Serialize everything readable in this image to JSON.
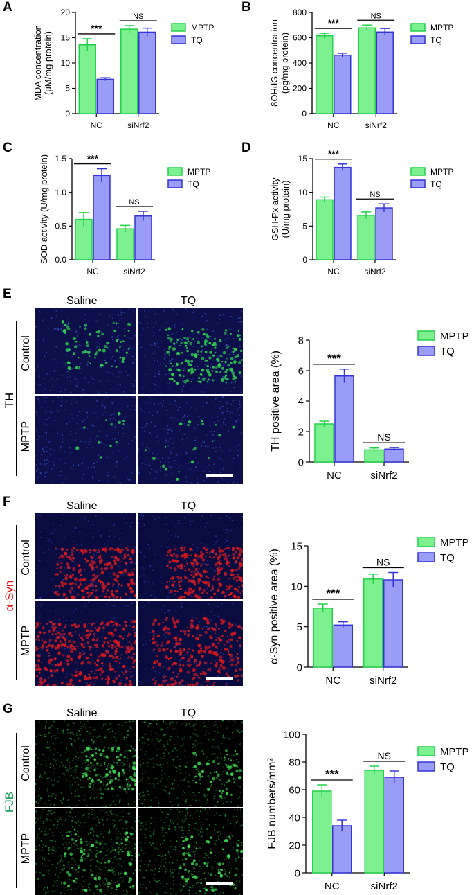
{
  "panels": {
    "A": "A",
    "B": "B",
    "C": "C",
    "D": "D",
    "E": "E",
    "F": "F",
    "G": "G"
  },
  "colors": {
    "mptp_fill": "#7df08f",
    "mptp_edge": "#22d14a",
    "tq_fill": "#9a9cf5",
    "tq_edge": "#3535d6",
    "th_label": "#17a05b",
    "syn_label": "#e8141c",
    "fjb_label": "#17a05b"
  },
  "legend": {
    "mptp": "MPTP",
    "tq": "TQ"
  },
  "micrographs": {
    "E": {
      "columns": [
        "Saline",
        "TQ"
      ],
      "rows": [
        "Control",
        "MPTP"
      ],
      "stain": "TH"
    },
    "F": {
      "columns": [
        "Saline",
        "TQ"
      ],
      "rows": [
        "Control",
        "MPTP"
      ],
      "stain": "α-Syn"
    },
    "G": {
      "columns": [
        "Saline",
        "TQ"
      ],
      "rows": [
        "Control",
        "MPTP"
      ],
      "stain": "FJB"
    }
  },
  "chart_data": [
    {
      "panel": "A",
      "type": "bar",
      "categories": [
        "NC",
        "siNrf2"
      ],
      "ylabel": [
        "MDA concentration",
        "(μM/mg protein)"
      ],
      "ylim": [
        0,
        20
      ],
      "yticks": [
        0,
        5,
        10,
        15,
        20
      ],
      "series": [
        {
          "name": "MPTP",
          "values": [
            13.6,
            16.7
          ],
          "errors": [
            1.2,
            0.7
          ]
        },
        {
          "name": "TQ",
          "values": [
            6.8,
            16.1
          ],
          "errors": [
            0.3,
            0.8
          ]
        }
      ],
      "annotations": [
        "***",
        "NS"
      ]
    },
    {
      "panel": "B",
      "type": "bar",
      "categories": [
        "NC",
        "siNrf2"
      ],
      "ylabel": [
        "8OHdG concentration",
        "(pg/mg protein)"
      ],
      "ylim": [
        0,
        800
      ],
      "yticks": [
        0,
        200,
        400,
        600,
        800
      ],
      "series": [
        {
          "name": "MPTP",
          "values": [
            615,
            678
          ],
          "errors": [
            20,
            22
          ]
        },
        {
          "name": "TQ",
          "values": [
            462,
            645
          ],
          "errors": [
            15,
            28
          ]
        }
      ],
      "annotations": [
        "***",
        "NS"
      ]
    },
    {
      "panel": "C",
      "type": "bar",
      "categories": [
        "NC",
        "siNrf2"
      ],
      "ylabel": [
        "SOD activity (U/mg protein)"
      ],
      "ylim": [
        0,
        1.5
      ],
      "yticks": [
        "0.0",
        "0.5",
        "1.0",
        "1.5"
      ],
      "series": [
        {
          "name": "MPTP",
          "values": [
            0.6,
            0.46
          ],
          "errors": [
            0.1,
            0.05
          ]
        },
        {
          "name": "TQ",
          "values": [
            1.25,
            0.65
          ],
          "errors": [
            0.1,
            0.07
          ]
        }
      ],
      "annotations": [
        "***",
        "NS"
      ]
    },
    {
      "panel": "D",
      "type": "bar",
      "categories": [
        "NC",
        "siNrf2"
      ],
      "ylabel": [
        "GSH-Px activity",
        "(U/mg protein)"
      ],
      "ylim": [
        0,
        15
      ],
      "yticks": [
        0,
        5,
        10,
        15
      ],
      "series": [
        {
          "name": "MPTP",
          "values": [
            8.9,
            6.6
          ],
          "errors": [
            0.4,
            0.5
          ]
        },
        {
          "name": "TQ",
          "values": [
            13.7,
            7.7
          ],
          "errors": [
            0.5,
            0.6
          ]
        }
      ],
      "annotations": [
        "***",
        "NS"
      ]
    },
    {
      "panel": "E",
      "type": "bar",
      "categories": [
        "NC",
        "siNrf2"
      ],
      "ylabel": [
        "TH positive area (%)"
      ],
      "ylim": [
        0,
        8
      ],
      "yticks": [
        0,
        2,
        4,
        6,
        8
      ],
      "series": [
        {
          "name": "MPTP",
          "values": [
            2.5,
            0.8
          ],
          "errors": [
            0.18,
            0.12
          ]
        },
        {
          "name": "TQ",
          "values": [
            5.65,
            0.85
          ],
          "errors": [
            0.45,
            0.1
          ]
        }
      ],
      "annotations": [
        "***",
        "NS"
      ]
    },
    {
      "panel": "F",
      "type": "bar",
      "categories": [
        "NC",
        "siNrf2"
      ],
      "ylabel": [
        "α-Syn positive area (%)"
      ],
      "ylim": [
        0,
        15
      ],
      "yticks": [
        0,
        5,
        10,
        15
      ],
      "series": [
        {
          "name": "MPTP",
          "values": [
            7.3,
            10.9
          ],
          "errors": [
            0.5,
            0.6
          ]
        },
        {
          "name": "TQ",
          "values": [
            5.2,
            10.8
          ],
          "errors": [
            0.4,
            0.9
          ]
        }
      ],
      "annotations": [
        "***",
        "NS"
      ]
    },
    {
      "panel": "G",
      "type": "bar",
      "categories": [
        "NC",
        "siNrf2"
      ],
      "ylabel": [
        "FJB numbers/mm²"
      ],
      "ylim": [
        0,
        100
      ],
      "yticks": [
        0,
        20,
        40,
        60,
        80,
        100
      ],
      "series": [
        {
          "name": "MPTP",
          "values": [
            59,
            74
          ],
          "errors": [
            4.5,
            3
          ]
        },
        {
          "name": "TQ",
          "values": [
            34,
            69
          ],
          "errors": [
            4,
            4.5
          ]
        }
      ],
      "annotations": [
        "***",
        "NS"
      ]
    }
  ]
}
